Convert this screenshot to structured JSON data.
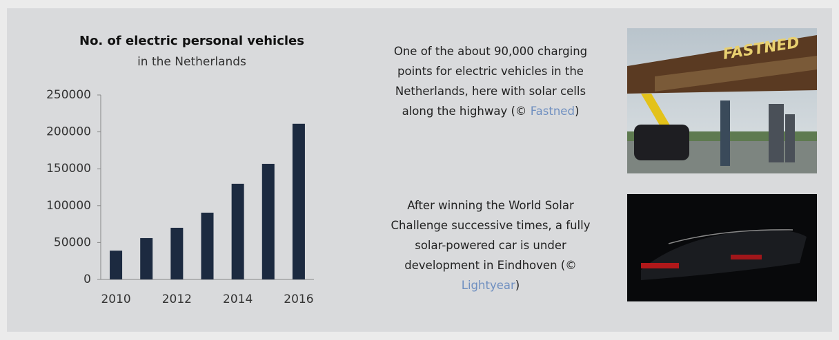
{
  "chart_data": {
    "type": "bar",
    "title": "No. of electric personal vehicles",
    "subtitle": "in the Netherlands",
    "categories": [
      "2010",
      null,
      "2012",
      null,
      "2014",
      null,
      "2016"
    ],
    "values": [
      39000,
      56000,
      70000,
      90500,
      129700,
      156700,
      211000
    ],
    "color": "#1c2a40",
    "ylim": [
      0,
      250000
    ],
    "yticks": [
      0,
      50000,
      100000,
      150000,
      200000,
      250000
    ],
    "grid": false
  },
  "captions": [
    {
      "text": "One of the about 90,000 charging points for electric vehicles in the Netherlands, here with solar cells along the highway (©",
      "link": "Fastned",
      "end": ")"
    },
    {
      "text": "After winning the World Solar Challenge successive times, a fully solar-powered car is under development in Eindhoven (©",
      "link": "Lightyear",
      "end": ")"
    }
  ]
}
